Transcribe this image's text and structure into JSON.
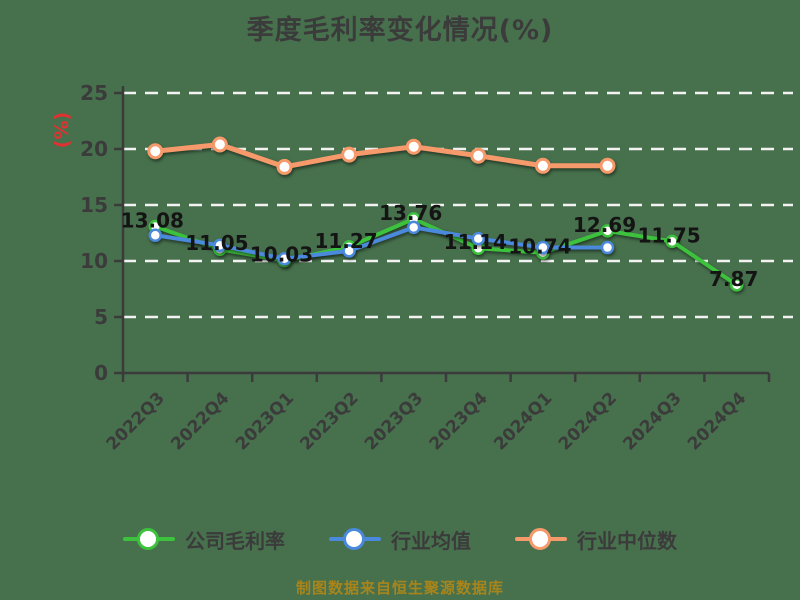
{
  "title": "季度毛利率变化情况(%)",
  "y_axis_label": "(%)",
  "caption": "制图数据来自恒生聚源数据库",
  "colors": {
    "background": "#47714d",
    "company_line": "#3dc23d",
    "industry_avg_line": "#4a89dc",
    "industry_median_line": "#f79a6b",
    "title_text": "#3b3b3b",
    "axis_text": "#3b3b3b",
    "value_label_text": "#141414",
    "y_unit_red": "#e03232",
    "caption_gold": "#a8851c",
    "gridline_white": "#f2f2f2"
  },
  "chart_data": {
    "type": "line",
    "title": "季度毛利率变化情况(%)",
    "ylabel": "(%)",
    "xlabel": "",
    "categories": [
      "2022Q3",
      "2022Q4",
      "2023Q1",
      "2023Q2",
      "2023Q3",
      "2023Q4",
      "2024Q1",
      "2024Q2",
      "2024Q3",
      "2024Q4"
    ],
    "series": [
      {
        "name": "公司毛利率",
        "color": "#3dc23d",
        "values": [
          13.08,
          11.05,
          10.03,
          11.27,
          13.76,
          11.14,
          10.74,
          12.69,
          11.75,
          7.87
        ],
        "data_labels": [
          "13.08",
          "11.05",
          "10.03",
          "11.27",
          "13.76",
          "11.14",
          "10.74",
          "12.69",
          "11.75",
          "7.87"
        ]
      },
      {
        "name": "行业均值",
        "color": "#4a89dc",
        "values": [
          12.3,
          11.4,
          10.2,
          10.9,
          13.0,
          12.0,
          11.2,
          11.2,
          null,
          null
        ],
        "data_labels": null
      },
      {
        "name": "行业中位数",
        "color": "#f79a6b",
        "values": [
          19.8,
          20.4,
          18.4,
          19.5,
          20.2,
          19.4,
          18.5,
          18.5,
          null,
          null
        ],
        "data_labels": null
      }
    ],
    "y_ticks": [
      0,
      5,
      10,
      15,
      20,
      25
    ],
    "ylim": [
      0,
      25
    ],
    "grid": "horizontal-dashed",
    "legend_position": "bottom"
  },
  "legend": {
    "items": [
      {
        "label": "公司毛利率"
      },
      {
        "label": "行业均值"
      },
      {
        "label": "行业中位数"
      }
    ]
  }
}
